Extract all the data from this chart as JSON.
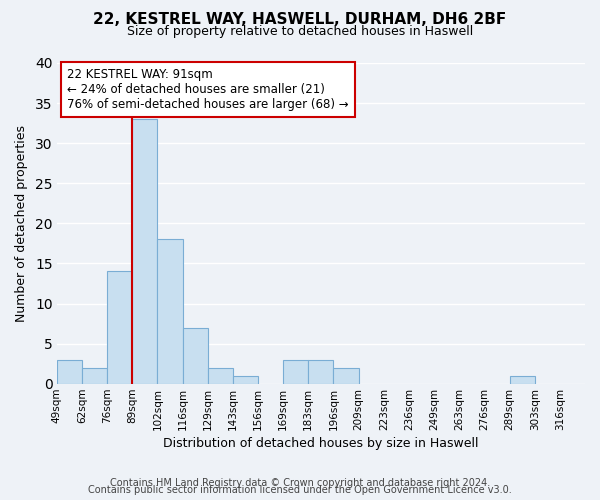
{
  "title": "22, KESTREL WAY, HASWELL, DURHAM, DH6 2BF",
  "subtitle": "Size of property relative to detached houses in Haswell",
  "xlabel": "Distribution of detached houses by size in Haswell",
  "ylabel": "Number of detached properties",
  "bar_color": "#c8dff0",
  "bar_edge_color": "#7aadd4",
  "background_color": "#eef2f7",
  "grid_color": "#ffffff",
  "bin_labels": [
    "49sqm",
    "62sqm",
    "76sqm",
    "89sqm",
    "102sqm",
    "116sqm",
    "129sqm",
    "143sqm",
    "156sqm",
    "169sqm",
    "183sqm",
    "196sqm",
    "209sqm",
    "223sqm",
    "236sqm",
    "249sqm",
    "263sqm",
    "276sqm",
    "289sqm",
    "303sqm",
    "316sqm"
  ],
  "counts": [
    3,
    2,
    14,
    33,
    18,
    7,
    2,
    1,
    0,
    3,
    3,
    2,
    0,
    0,
    0,
    0,
    0,
    0,
    1,
    0,
    0
  ],
  "ylim": [
    0,
    40
  ],
  "yticks": [
    0,
    5,
    10,
    15,
    20,
    25,
    30,
    35,
    40
  ],
  "vline_color": "#cc0000",
  "annotation_line1": "22 KESTREL WAY: 91sqm",
  "annotation_line2": "← 24% of detached houses are smaller (21)",
  "annotation_line3": "76% of semi-detached houses are larger (68) →",
  "annotation_box_edge": "#cc0000",
  "footer1": "Contains HM Land Registry data © Crown copyright and database right 2024.",
  "footer2": "Contains public sector information licensed under the Open Government Licence v3.0."
}
